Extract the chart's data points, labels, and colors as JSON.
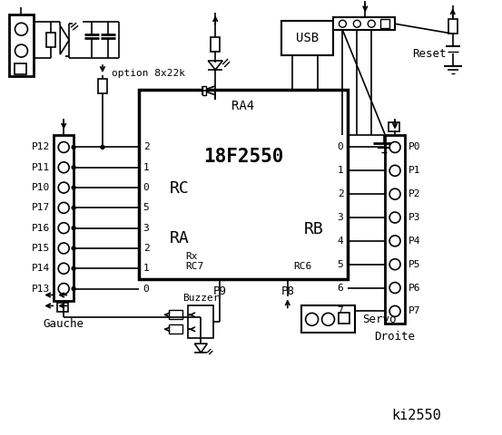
{
  "bg_color": "#ffffff",
  "title": "ki2550",
  "chip_label": "18F2550",
  "chip_sublabel": "RA4",
  "rc_label": "RC",
  "ra_label": "RA",
  "rb_label": "RB",
  "rc_pins": [
    "2",
    "1",
    "0",
    "5",
    "3",
    "2",
    "1",
    "0"
  ],
  "rb_pins": [
    "0",
    "1",
    "2",
    "3",
    "4",
    "5",
    "6",
    "7"
  ],
  "left_labels": [
    "P12",
    "P11",
    "P10",
    "P17",
    "P16",
    "P15",
    "P14",
    "P13"
  ],
  "right_labels": [
    "P0",
    "P1",
    "P2",
    "P3",
    "P4",
    "P5",
    "P6",
    "P7"
  ],
  "option_text": "option 8x22k",
  "rx_text": "Rx",
  "rc7_text": "RC7",
  "rc6_text": "RC6",
  "reset_text": "Reset",
  "usb_text": "USB",
  "gauche_text": "Gauche",
  "droite_text": "Droite",
  "buzzer_text": "Buzzer",
  "p9_text": "P9",
  "p8_text": "P8",
  "servo_text": "Servo"
}
